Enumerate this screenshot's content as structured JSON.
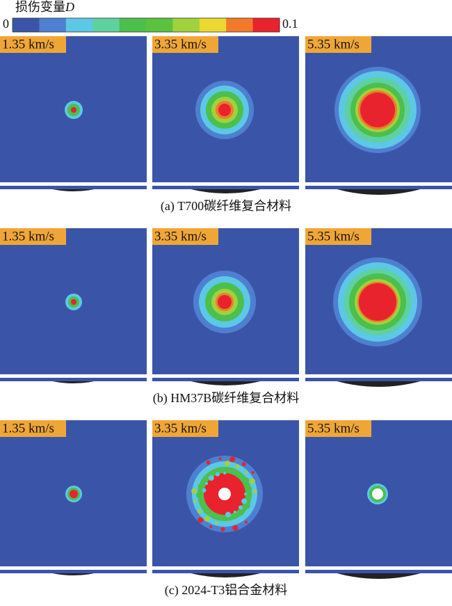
{
  "legend": {
    "title": "损伤变量",
    "symbol": "D",
    "min": "0",
    "max": "0.1",
    "colors": [
      "#3a55a8",
      "#4f7fd0",
      "#5cc8e6",
      "#5fd0a0",
      "#4cbf4c",
      "#5ac23e",
      "#9fd23c",
      "#ecd830",
      "#f27a2a",
      "#e8232e"
    ]
  },
  "rows": [
    {
      "caption": "(a) T700碳纤维复合材料",
      "panels": [
        "1.35 km/s",
        "3.35 km/s",
        "5.35 km/s"
      ]
    },
    {
      "caption": "(b) HM37B碳纤维复合材料",
      "panels": [
        "1.35 km/s",
        "3.35 km/s",
        "5.35 km/s"
      ]
    },
    {
      "caption": "(c) 2024-T3铝合金材料",
      "panels": [
        "1.35 km/s",
        "3.35 km/s",
        "5.35 km/s"
      ]
    }
  ]
}
